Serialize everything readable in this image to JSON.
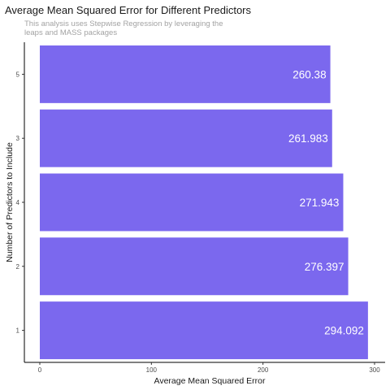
{
  "title": "Average Mean Squared Error for Different Predictors",
  "subtitle": "This analysis uses Stepwise Regression by leveraging the leaps and MASS packages",
  "chart_data": {
    "type": "bar",
    "orientation": "horizontal",
    "title": "Average Mean Squared Error for Different Predictors",
    "subtitle": "This analysis uses Stepwise Regression by leveraging the leaps and MASS packages",
    "xlabel": "Average Mean Squared Error",
    "ylabel": "Number of Predictors to Include",
    "categories": [
      "5",
      "3",
      "4",
      "2",
      "1"
    ],
    "values": [
      260.38,
      261.983,
      271.943,
      276.397,
      294.092
    ],
    "data_labels": [
      "260.38",
      "261.983",
      "271.943",
      "276.397",
      "294.092"
    ],
    "x_ticks": [
      0,
      100,
      200,
      300
    ],
    "xlim": [
      0,
      310
    ],
    "bar_color": "#7B68EE",
    "label_color": "#ffffff",
    "grid": false,
    "legend": "none"
  }
}
